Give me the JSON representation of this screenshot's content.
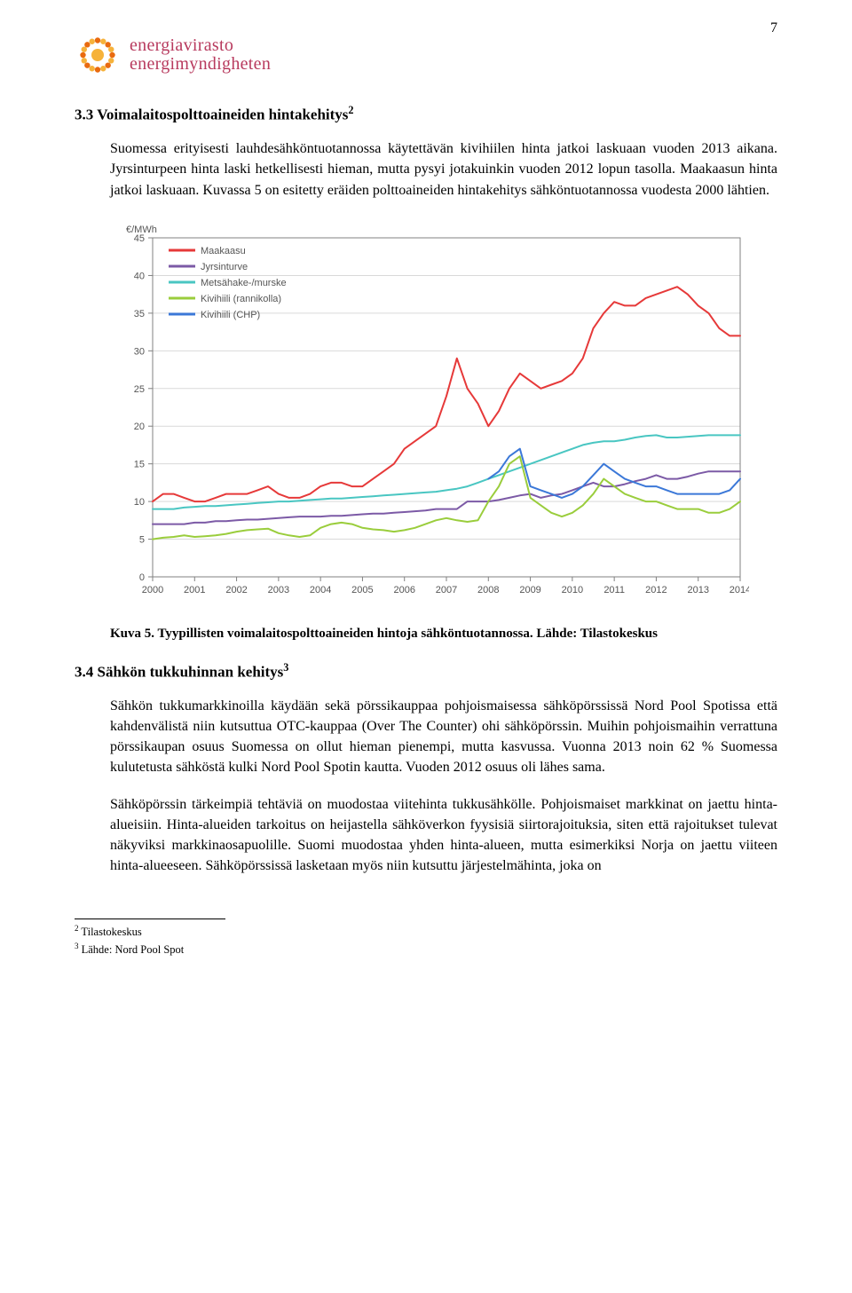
{
  "page_number": "7",
  "logo": {
    "line1": "energiavirasto",
    "line2": "energimyndigheten",
    "brand_color": "#b83a5e",
    "sun_outer": "#e96a0f",
    "sun_inner": "#f6b23a"
  },
  "section_3_3": {
    "heading": "3.3  Voimalaitospolttoaineiden hintakehitys",
    "heading_sup": "2",
    "para": "Suomessa erityisesti lauhdesähköntuotannossa käytettävän kivihiilen hinta jatkoi laskuaan vuoden 2013 aikana. Jyrsinturpeen hinta laski hetkellisesti hieman, mutta pysyi jotakuinkin vuoden 2012 lopun tasolla. Maakaasun hinta jatkoi laskuaan. Kuvassa 5 on esitetty eräiden polttoaineiden hintakehitys sähköntuotannossa vuodesta 2000 lähtien."
  },
  "chart": {
    "type": "line",
    "y_unit": "€/MWh",
    "background_color": "#ffffff",
    "grid_color": "#d9d9d9",
    "axis_color": "#808080",
    "tick_font_size": 11,
    "legend_font_size": 11,
    "x_categories": [
      "2000",
      "2001",
      "2002",
      "2003",
      "2004",
      "2005",
      "2006",
      "2007",
      "2008",
      "2009",
      "2010",
      "2011",
      "2012",
      "2013",
      "2014"
    ],
    "ylim": [
      0,
      45
    ],
    "ytick_step": 5,
    "points_per_year": 4,
    "line_width": 2,
    "series": [
      {
        "name": "Maakaasu",
        "color": "#e63939",
        "values": [
          10,
          11,
          11,
          10.5,
          10,
          10,
          10.5,
          11,
          11,
          11,
          11.5,
          12,
          11,
          10.5,
          10.5,
          11,
          12,
          12.5,
          12.5,
          12,
          12,
          13,
          14,
          15,
          17,
          18,
          19,
          20,
          24,
          29,
          25,
          23,
          20,
          22,
          25,
          27,
          26,
          25,
          25.5,
          26,
          27,
          29,
          33,
          35,
          36.5,
          36,
          36,
          37,
          37.5,
          38,
          38.5,
          37.5,
          36,
          35,
          33,
          32,
          32
        ]
      },
      {
        "name": "Jyrsinturve",
        "color": "#7c5aa6",
        "values": [
          7,
          7,
          7,
          7,
          7.2,
          7.2,
          7.4,
          7.4,
          7.5,
          7.6,
          7.6,
          7.7,
          7.8,
          7.9,
          8,
          8,
          8,
          8.1,
          8.1,
          8.2,
          8.3,
          8.4,
          8.4,
          8.5,
          8.6,
          8.7,
          8.8,
          9,
          9,
          9,
          10,
          10,
          10,
          10.2,
          10.5,
          10.8,
          11,
          10.5,
          10.8,
          11,
          11.5,
          12,
          12.5,
          12,
          12,
          12.3,
          12.7,
          13,
          13.5,
          13,
          13,
          13.3,
          13.7,
          14,
          14,
          14,
          14
        ]
      },
      {
        "name": "Metsähake-/murske",
        "color": "#49c6c2",
        "values": [
          9,
          9,
          9,
          9.2,
          9.3,
          9.4,
          9.4,
          9.5,
          9.6,
          9.7,
          9.8,
          9.9,
          10,
          10,
          10.1,
          10.2,
          10.3,
          10.4,
          10.4,
          10.5,
          10.6,
          10.7,
          10.8,
          10.9,
          11,
          11.1,
          11.2,
          11.3,
          11.5,
          11.7,
          12,
          12.5,
          13,
          13.5,
          14,
          14.5,
          15,
          15.5,
          16,
          16.5,
          17,
          17.5,
          17.8,
          18,
          18,
          18.2,
          18.5,
          18.7,
          18.8,
          18.5,
          18.5,
          18.6,
          18.7,
          18.8,
          18.8,
          18.8,
          18.8
        ]
      },
      {
        "name": "Kivihiili (rannikolla)",
        "color": "#9acd3c",
        "values": [
          5,
          5.2,
          5.3,
          5.5,
          5.3,
          5.4,
          5.5,
          5.7,
          6,
          6.2,
          6.3,
          6.4,
          5.8,
          5.5,
          5.3,
          5.5,
          6.5,
          7,
          7.2,
          7,
          6.5,
          6.3,
          6.2,
          6,
          6.2,
          6.5,
          7,
          7.5,
          7.8,
          7.5,
          7.3,
          7.5,
          10,
          12,
          15,
          16,
          10.5,
          9.5,
          8.5,
          8,
          8.5,
          9.5,
          11,
          13,
          12,
          11,
          10.5,
          10,
          10,
          9.5,
          9,
          9,
          9,
          8.5,
          8.5,
          9,
          10
        ]
      },
      {
        "name": "Kivihiili (CHP)",
        "color": "#3b78d8",
        "values": [
          null,
          null,
          null,
          null,
          null,
          null,
          null,
          null,
          null,
          null,
          null,
          null,
          null,
          null,
          null,
          null,
          null,
          null,
          null,
          null,
          null,
          null,
          null,
          null,
          null,
          null,
          null,
          null,
          null,
          null,
          null,
          null,
          13,
          14,
          16,
          17,
          12,
          11.5,
          11,
          10.5,
          11,
          12,
          13.5,
          15,
          14,
          13,
          12.5,
          12,
          12,
          11.5,
          11,
          11,
          11,
          11,
          11,
          11.5,
          13
        ]
      }
    ]
  },
  "caption": "Kuva 5. Tyypillisten voimalaitospolttoaineiden hintoja sähköntuotannossa. Lähde: Tilastokeskus",
  "section_3_4": {
    "heading": "3.4  Sähkön tukkuhinnan kehitys",
    "heading_sup": "3",
    "para1": "Sähkön tukkumarkkinoilla käydään sekä pörssikauppaa pohjoismaisessa sähköpörssissä Nord Pool Spotissa että kahdenvälistä niin kutsuttua OTC-kauppaa (Over The Counter) ohi sähköpörssin. Muihin pohjoismaihin verrattuna pörssikaupan osuus Suomessa on ollut hieman pienempi, mutta kasvussa. Vuonna 2013 noin 62 % Suomessa kulutetusta sähköstä kulki Nord Pool Spotin kautta. Vuoden 2012 osuus oli lähes sama.",
    "para2": "Sähköpörssin tärkeimpiä tehtäviä on muodostaa viitehinta tukkusähkölle. Pohjoismaiset markkinat on jaettu hinta-alueisiin. Hinta-alueiden tarkoitus on heijastella sähköverkon fyysisiä siirtorajoituksia, siten että rajoitukset tulevat näkyviksi markkinaosapuolille. Suomi muodostaa yhden hinta-alueen, mutta esimerkiksi Norja on jaettu viiteen hinta-alueeseen. Sähköpörssissä lasketaan myös niin kutsuttu järjestelmähinta, joka on"
  },
  "footnotes": {
    "fn2": "Tilastokeskus",
    "fn3": "Lähde: Nord Pool Spot"
  }
}
